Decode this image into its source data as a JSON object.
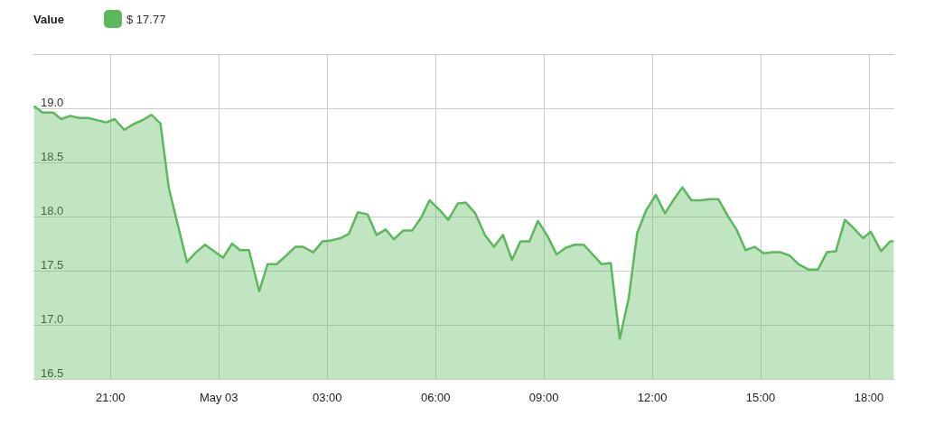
{
  "chart_data": {
    "type": "area",
    "legend_title": "Value",
    "legend": "top left",
    "grid": true,
    "marker": "none",
    "line_style": "solid",
    "xlim": [
      "--05-02T18:52",
      "--05-03T18:42"
    ],
    "ylim": [
      16.5,
      19.5
    ],
    "xticks": [
      {
        "value": "--05-02T21:00",
        "label": "21:00"
      },
      {
        "value": "--05-03T00:00",
        "label": "May 03"
      },
      {
        "value": "--05-03T03:00",
        "label": "03:00"
      },
      {
        "value": "--05-03T06:00",
        "label": "06:00"
      },
      {
        "value": "--05-03T09:00",
        "label": "09:00"
      },
      {
        "value": "--05-03T12:00",
        "label": "12:00"
      },
      {
        "value": "--05-03T15:00",
        "label": "15:00"
      },
      {
        "value": "--05-03T18:00",
        "label": "18:00"
      }
    ],
    "yticks": [
      {
        "value": 16.5,
        "label": "16.5"
      },
      {
        "value": 17.0,
        "label": "17.0"
      },
      {
        "value": 17.5,
        "label": "17.5"
      },
      {
        "value": 18.0,
        "label": "18.0"
      },
      {
        "value": 18.5,
        "label": "18.5"
      },
      {
        "value": 19.0,
        "label": "19.0"
      },
      {
        "value": 19.5,
        "label": null
      }
    ],
    "series": [
      {
        "name": "$ 17.77",
        "color": "#5cb85c",
        "x": [
          "--05-02T18:53",
          "--05-02T19:07",
          "--05-02T19:25",
          "--05-02T19:38",
          "--05-02T19:53",
          "--05-02T20:08",
          "--05-02T20:23",
          "--05-02T20:53",
          "--05-02T21:07",
          "--05-02T21:23",
          "--05-02T21:37",
          "--05-02T21:53",
          "--05-02T22:08",
          "--05-02T22:23",
          "--05-02T22:37",
          "--05-02T23:07",
          "--05-02T23:22",
          "--05-02T23:37",
          "--05-03T00:07",
          "--05-03T00:22",
          "--05-03T00:35",
          "--05-03T00:50",
          "--05-03T01:07",
          "--05-03T01:21",
          "--05-03T01:36",
          "--05-03T01:52",
          "--05-03T02:07",
          "--05-03T02:20",
          "--05-03T02:37",
          "--05-03T02:52",
          "--05-03T03:07",
          "--05-03T03:22",
          "--05-03T03:36",
          "--05-03T03:51",
          "--05-03T04:07",
          "--05-03T04:22",
          "--05-03T04:37",
          "--05-03T04:51",
          "--05-03T05:06",
          "--05-03T05:21",
          "--05-03T05:36",
          "--05-03T05:50",
          "--05-03T06:07",
          "--05-03T06:21",
          "--05-03T06:37",
          "--05-03T06:50",
          "--05-03T07:06",
          "--05-03T07:22",
          "--05-03T07:37",
          "--05-03T07:52",
          "--05-03T08:07",
          "--05-03T08:21",
          "--05-03T08:36",
          "--05-03T08:50",
          "--05-03T09:06",
          "--05-03T09:21",
          "--05-03T09:36",
          "--05-03T09:51",
          "--05-03T10:06",
          "--05-03T10:21",
          "--05-03T10:36",
          "--05-03T10:51",
          "--05-03T11:06",
          "--05-03T11:21",
          "--05-03T11:35",
          "--05-03T11:50",
          "--05-03T12:06",
          "--05-03T12:21",
          "--05-03T12:36",
          "--05-03T12:50",
          "--05-03T13:05",
          "--05-03T13:20",
          "--05-03T13:35",
          "--05-03T13:50",
          "--05-03T14:05",
          "--05-03T14:20",
          "--05-03T14:35",
          "--05-03T14:50",
          "--05-03T15:05",
          "--05-03T15:20",
          "--05-03T15:33",
          "--05-03T15:48",
          "--05-03T16:03",
          "--05-03T16:20",
          "--05-03T16:35",
          "--05-03T16:50",
          "--05-03T17:05",
          "--05-03T17:20",
          "--05-03T17:35",
          "--05-03T17:50",
          "--05-03T18:03",
          "--05-03T18:20",
          "--05-03T18:35",
          "--05-03T18:41"
        ],
        "values": [
          19.02,
          18.96,
          18.96,
          18.9,
          18.93,
          18.91,
          18.91,
          18.87,
          18.9,
          18.8,
          18.85,
          18.89,
          18.94,
          18.86,
          18.26,
          17.58,
          17.67,
          17.74,
          17.62,
          17.75,
          17.69,
          17.69,
          17.31,
          17.56,
          17.56,
          17.64,
          17.72,
          17.72,
          17.67,
          17.77,
          17.78,
          17.8,
          17.84,
          18.04,
          18.02,
          17.83,
          17.88,
          17.79,
          17.87,
          17.87,
          17.99,
          18.15,
          18.06,
          17.97,
          18.12,
          18.13,
          18.03,
          17.83,
          17.72,
          17.83,
          17.6,
          17.77,
          17.77,
          17.96,
          17.82,
          17.65,
          17.71,
          17.74,
          17.74,
          17.65,
          17.56,
          17.57,
          16.87,
          17.25,
          17.85,
          18.06,
          18.2,
          18.03,
          18.16,
          18.27,
          18.15,
          18.15,
          18.16,
          18.16,
          18.01,
          17.88,
          17.69,
          17.72,
          17.66,
          17.67,
          17.67,
          17.64,
          17.56,
          17.51,
          17.51,
          17.67,
          17.68,
          17.97,
          17.89,
          17.8,
          17.86,
          17.68,
          17.77,
          17.77
        ]
      }
    ]
  }
}
